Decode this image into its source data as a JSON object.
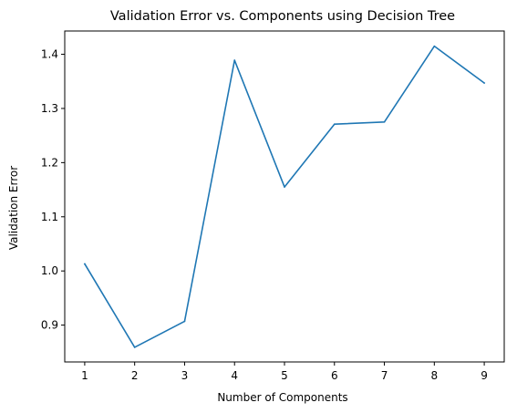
{
  "chart_data": {
    "type": "line",
    "title": "Validation Error vs. Components using Decision Tree",
    "xlabel": "Number of Components",
    "ylabel": "Validation Error",
    "x": [
      1,
      2,
      3,
      4,
      5,
      6,
      7,
      8,
      9
    ],
    "series": [
      {
        "values": [
          1.013,
          0.859,
          0.907,
          1.389,
          1.155,
          1.271,
          1.275,
          1.415,
          1.347
        ],
        "color": "#1f77b4"
      }
    ],
    "xlim": [
      0.6,
      9.4
    ],
    "ylim": [
      0.832,
      1.443
    ],
    "xticks": [
      1,
      2,
      3,
      4,
      5,
      6,
      7,
      8,
      9
    ],
    "yticks": [
      0.9,
      1.0,
      1.1,
      1.2,
      1.3,
      1.4
    ],
    "xtick_labels": [
      "1",
      "2",
      "3",
      "4",
      "5",
      "6",
      "7",
      "8",
      "9"
    ],
    "ytick_labels": [
      "0.9",
      "1.0",
      "1.1",
      "1.2",
      "1.3",
      "1.4"
    ],
    "grid": false,
    "legend": "none"
  }
}
